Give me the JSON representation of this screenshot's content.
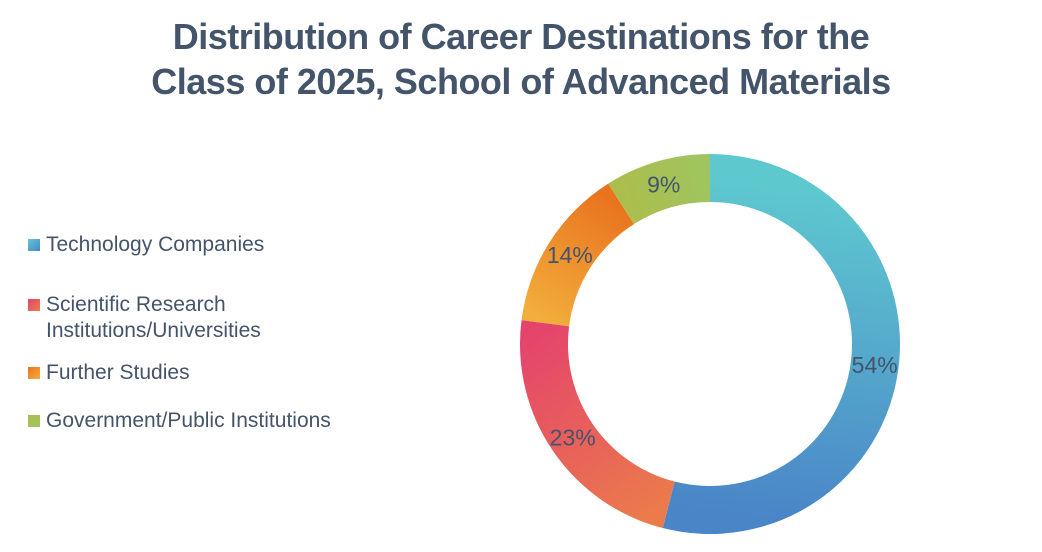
{
  "canvas": {
    "background": "#FFFFFF",
    "text_color": "#44546A"
  },
  "title": {
    "line1": "Distribution of Career Destinations for the",
    "line2": "Class of 2025, School of Advanced Materials",
    "color": "#44546A"
  },
  "chart_data": {
    "type": "pie",
    "subtype": "donut",
    "title": "Distribution of Career Destinations for the Class of 2025, School of Advanced Materials",
    "unit": "%",
    "start_angle_deg": 0,
    "direction": "clockwise",
    "legend_position": "left",
    "label_color": "#44546A",
    "categories": [
      "Technology Companies",
      "Scientific Research Institutions/Universities",
      "Further Studies",
      "Government/Public Institutions"
    ],
    "values": [
      54,
      23,
      14,
      9
    ],
    "slices": [
      {
        "label": "Technology Companies",
        "legend_lines": "Technology Companies",
        "value": 54,
        "data_label": "54%",
        "color_start": "#5EC8CF",
        "color_end": "#4A85C8",
        "swatch_from": "#5EC8CF",
        "swatch_to": "#4A85C8"
      },
      {
        "label": "Scientific Research Institutions/Universities",
        "legend_lines": "Scientific Research\nInstitutions/Universities",
        "value": 23,
        "data_label": "23%",
        "color_start": "#EB7B4B",
        "color_end": "#E4446C",
        "swatch_from": "#E4446C",
        "swatch_to": "#EB7B4B"
      },
      {
        "label": "Further Studies",
        "legend_lines": "Further Studies",
        "value": 14,
        "data_label": "14%",
        "color_start": "#F2AE3C",
        "color_end": "#E9731F",
        "swatch_from": "#E9731F",
        "swatch_to": "#F2AE3C"
      },
      {
        "label": "Government/Public Institutions",
        "legend_lines": "Government/Public Institutions",
        "value": 9,
        "data_label": "9%",
        "color_start": "#ACBD4C",
        "color_end": "#9FC560",
        "swatch_from": "#ACBD4C",
        "swatch_to": "#9FC560"
      }
    ]
  }
}
